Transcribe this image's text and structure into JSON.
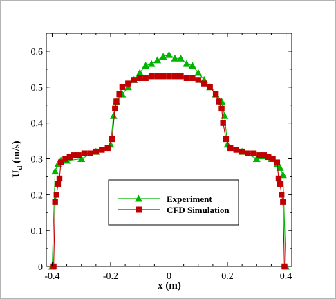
{
  "colors": {
    "experiment": "#00b400",
    "cfd": "#c00000",
    "axis": "#000000",
    "background": "#ffffff"
  },
  "chart_data": {
    "type": "line",
    "title": "",
    "xlabel": "x (m)",
    "ylabel_main": "U",
    "ylabel_sub": "d",
    "ylabel_unit": " (m/s)",
    "xlim": [
      -0.42,
      0.42
    ],
    "ylim": [
      0,
      0.65
    ],
    "x_ticks": [
      -0.4,
      -0.2,
      0,
      0.2,
      0.4
    ],
    "x_tick_labels": [
      "-0.4",
      "-0.2",
      "0",
      "0.2",
      "0.4"
    ],
    "y_ticks": [
      0,
      0.1,
      0.2,
      0.3,
      0.4,
      0.5,
      0.6
    ],
    "y_tick_labels": [
      "0",
      "0.1",
      "0.2",
      "0.3",
      "0.4",
      "0.5",
      "0.6"
    ],
    "grid": false,
    "legend_position": "lower-center",
    "series": [
      {
        "name": "Experiment",
        "marker": "triangle",
        "color": "#00b400",
        "x": [
          -0.4,
          -0.39,
          -0.38,
          -0.37,
          -0.35,
          -0.3,
          -0.25,
          -0.2,
          -0.19,
          -0.18,
          -0.16,
          -0.14,
          -0.12,
          -0.1,
          -0.08,
          -0.06,
          -0.04,
          -0.02,
          0.0,
          0.02,
          0.04,
          0.06,
          0.08,
          0.1,
          0.12,
          0.14,
          0.16,
          0.18,
          0.19,
          0.2,
          0.25,
          0.3,
          0.35,
          0.37,
          0.38,
          0.39,
          0.4
        ],
        "y": [
          0.0,
          0.265,
          0.285,
          0.295,
          0.295,
          0.3,
          0.32,
          0.34,
          0.42,
          0.46,
          0.48,
          0.5,
          0.52,
          0.54,
          0.56,
          0.565,
          0.575,
          0.585,
          0.59,
          0.58,
          0.58,
          0.565,
          0.56,
          0.54,
          0.52,
          0.5,
          0.48,
          0.46,
          0.42,
          0.34,
          0.32,
          0.3,
          0.3,
          0.285,
          0.275,
          0.255,
          0.0
        ]
      },
      {
        "name": "CFD Simulation",
        "marker": "square",
        "color": "#c00000",
        "x": [
          -0.395,
          -0.39,
          -0.385,
          -0.38,
          -0.375,
          -0.37,
          -0.355,
          -0.34,
          -0.325,
          -0.31,
          -0.29,
          -0.27,
          -0.25,
          -0.23,
          -0.21,
          -0.195,
          -0.185,
          -0.18,
          -0.17,
          -0.16,
          -0.14,
          -0.12,
          -0.1,
          -0.08,
          -0.06,
          -0.04,
          -0.02,
          0.0,
          0.02,
          0.04,
          0.06,
          0.08,
          0.1,
          0.12,
          0.14,
          0.16,
          0.17,
          0.18,
          0.185,
          0.195,
          0.21,
          0.23,
          0.25,
          0.27,
          0.29,
          0.31,
          0.325,
          0.34,
          0.355,
          0.37,
          0.375,
          0.38,
          0.385,
          0.39,
          0.395
        ],
        "y": [
          0.0,
          0.18,
          0.2,
          0.23,
          0.245,
          0.29,
          0.3,
          0.305,
          0.31,
          0.31,
          0.315,
          0.315,
          0.32,
          0.325,
          0.33,
          0.355,
          0.44,
          0.46,
          0.48,
          0.5,
          0.51,
          0.52,
          0.525,
          0.525,
          0.53,
          0.53,
          0.53,
          0.53,
          0.53,
          0.53,
          0.525,
          0.525,
          0.52,
          0.51,
          0.5,
          0.48,
          0.46,
          0.44,
          0.4,
          0.355,
          0.33,
          0.325,
          0.32,
          0.315,
          0.315,
          0.31,
          0.31,
          0.305,
          0.3,
          0.29,
          0.245,
          0.23,
          0.2,
          0.18,
          0.0
        ]
      }
    ]
  }
}
